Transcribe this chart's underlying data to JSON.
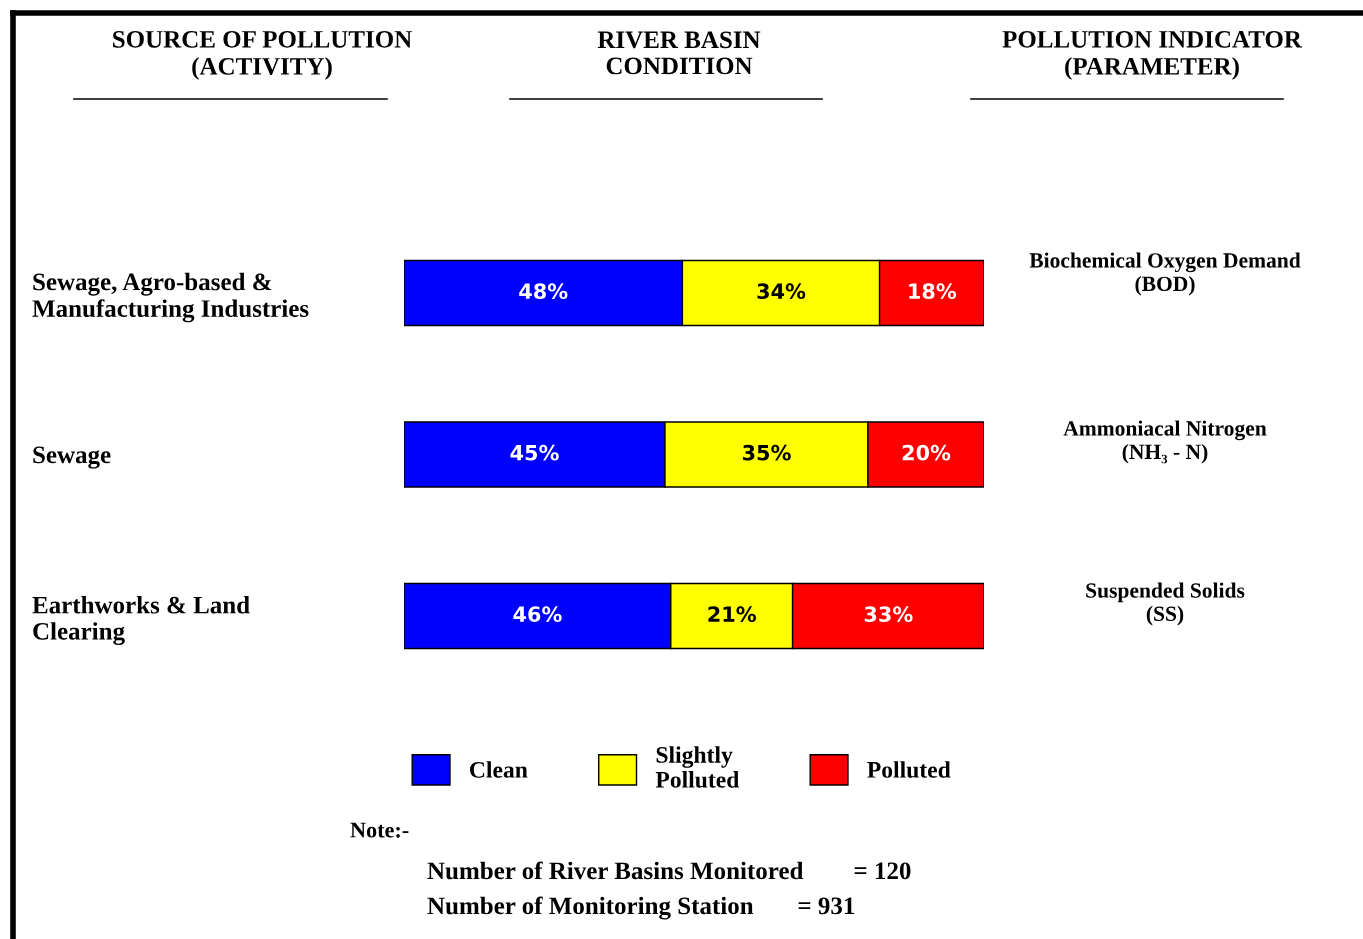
{
  "chart_data": {
    "type": "bar",
    "orientation": "horizontal",
    "stacked": true,
    "title": "RIVER BASIN\nCONDITION",
    "categories": [
      "Sewage, Agro-based &\nManufacturing Industries",
      "Sewage",
      "Earthworks & Land\nClearing"
    ],
    "series": [
      {
        "name": "Clean",
        "color": "#0000ff",
        "values": [
          48,
          45,
          46
        ],
        "value_labels": [
          "48%",
          "45%",
          "46%"
        ]
      },
      {
        "name": "Slightly\nPolluted",
        "color": "#ffff00",
        "values": [
          34,
          35,
          21
        ],
        "value_labels": [
          "34%",
          "35%",
          "21%"
        ]
      },
      {
        "name": "Polluted",
        "color": "#ff0000",
        "values": [
          18,
          20,
          33
        ],
        "value_labels": [
          "18%",
          "20%",
          "33%"
        ]
      }
    ],
    "annotations": [
      "SOURCE OF POLLUTION\n(ACTIVITY)",
      "POLLUTION INDICATOR\n(PARAMETER)",
      "Biochemical Oxygen Demand\n(BOD)",
      "Ammoniacal Nitrogen\n(NH₃ - N)",
      "Suspended Solids\n(SS)",
      "Note:-",
      "Number of River Basins Monitored        = 120",
      "Number of Monitoring Station       = 931"
    ],
    "legend": "bottom",
    "grid": false,
    "tick_labels": "y"
  }
}
